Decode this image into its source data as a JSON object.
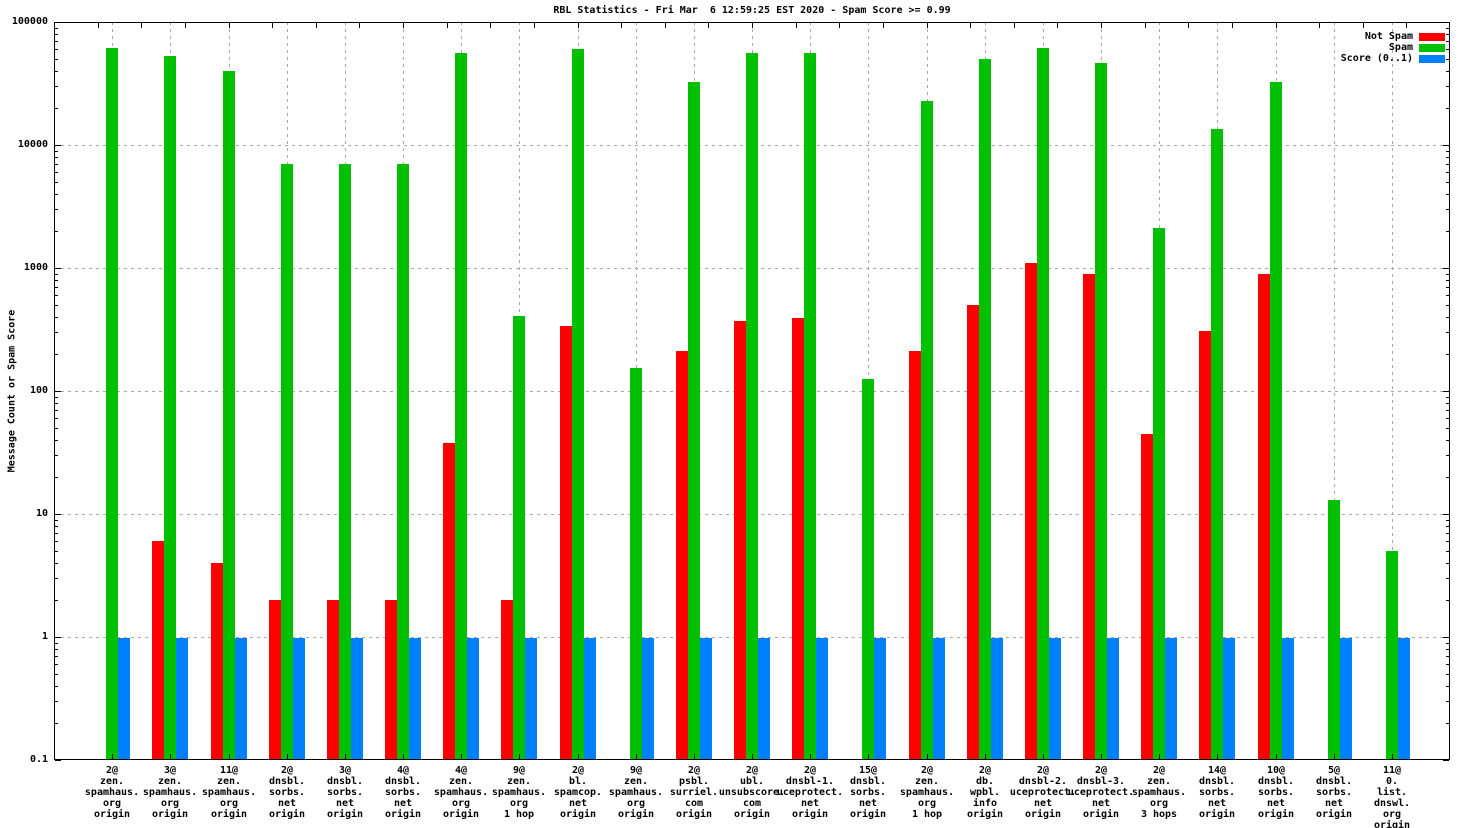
{
  "title": "RBL Statistics - Fri Mar  6 12:59:25 EST 2020 - Spam Score >= 0.99",
  "ylabel": "Message Count or Spam Score",
  "legend": [
    {
      "label": "Not Spam",
      "color": "#ff0000"
    },
    {
      "label": "Spam",
      "color": "#00c000"
    },
    {
      "label": "Score (0..1)",
      "color": "#0080ff"
    }
  ],
  "chart_data": {
    "type": "bar",
    "yscale": "log",
    "ylim": [
      0.1,
      100000
    ],
    "ytick_labels": [
      "100000",
      "10000",
      "1000",
      "100",
      "10",
      "1",
      "0.1"
    ],
    "grid": "on",
    "legend_position": "top-right",
    "title": "RBL Statistics - Fri Mar  6 12:59:25 EST 2020 - Spam Score >= 0.99",
    "xlabel": "",
    "ylabel": "Message Count or Spam Score",
    "categories": [
      [
        "2@",
        "zen.",
        "spamhaus.",
        "org",
        "origin"
      ],
      [
        "3@",
        "zen.",
        "spamhaus.",
        "org",
        "origin"
      ],
      [
        "11@",
        "zen.",
        "spamhaus.",
        "org",
        "origin"
      ],
      [
        "2@",
        "dnsbl.",
        "sorbs.",
        "net",
        "origin"
      ],
      [
        "3@",
        "dnsbl.",
        "sorbs.",
        "net",
        "origin"
      ],
      [
        "4@",
        "dnsbl.",
        "sorbs.",
        "net",
        "origin"
      ],
      [
        "4@",
        "zen.",
        "spamhaus.",
        "org",
        "origin"
      ],
      [
        "9@",
        "zen.",
        "spamhaus.",
        "org",
        "1 hop"
      ],
      [
        "2@",
        "bl.",
        "spamcop.",
        "net",
        "origin"
      ],
      [
        "9@",
        "zen.",
        "spamhaus.",
        "org",
        "origin"
      ],
      [
        "2@",
        "psbl.",
        "surriel.",
        "com",
        "origin"
      ],
      [
        "2@",
        "ubl.",
        "unsubscore.",
        "com",
        "origin"
      ],
      [
        "2@",
        "dnsbl-1.",
        "uceprotect.",
        "net",
        "origin"
      ],
      [
        "15@",
        "dnsbl.",
        "sorbs.",
        "net",
        "origin"
      ],
      [
        "2@",
        "zen.",
        "spamhaus.",
        "org",
        "1 hop"
      ],
      [
        "2@",
        "db.",
        "wpbl.",
        "info",
        "origin"
      ],
      [
        "2@",
        "dnsbl-2.",
        "uceprotect.",
        "net",
        "origin"
      ],
      [
        "2@",
        "dnsbl-3.",
        "uceprotect.",
        "net",
        "origin"
      ],
      [
        "2@",
        "zen.",
        "spamhaus.",
        "org",
        "3 hops"
      ],
      [
        "14@",
        "dnsbl.",
        "sorbs.",
        "net",
        "origin"
      ],
      [
        "10@",
        "dnsbl.",
        "sorbs.",
        "net",
        "origin"
      ],
      [
        "5@",
        "dnsbl.",
        "sorbs.",
        "net",
        "origin"
      ],
      [
        "11@",
        "0.",
        "list.",
        "dnswl.",
        "org",
        "origin"
      ]
    ],
    "series": [
      {
        "name": "Not Spam",
        "color": "#ff0000",
        "values": [
          0,
          6,
          4,
          2,
          2,
          2,
          38,
          2,
          340,
          0,
          210,
          370,
          390,
          0,
          210,
          500,
          1100,
          890,
          45,
          310,
          900,
          0,
          0
        ]
      },
      {
        "name": "Spam",
        "color": "#00c000",
        "values": [
          62000,
          53000,
          40000,
          7000,
          7000,
          7000,
          56000,
          410,
          60000,
          155,
          32500,
          56000,
          56000,
          125,
          23000,
          50000,
          61000,
          46000,
          2100,
          13500,
          32500,
          13,
          5
        ]
      },
      {
        "name": "Score (0..1)",
        "color": "#0080ff",
        "values": [
          0.99,
          0.99,
          0.99,
          0.99,
          0.99,
          0.99,
          0.99,
          0.99,
          0.99,
          0.99,
          0.99,
          0.99,
          0.99,
          0.99,
          0.99,
          0.99,
          0.99,
          0.99,
          0.99,
          0.99,
          0.99,
          0.99,
          0.99
        ]
      }
    ]
  }
}
